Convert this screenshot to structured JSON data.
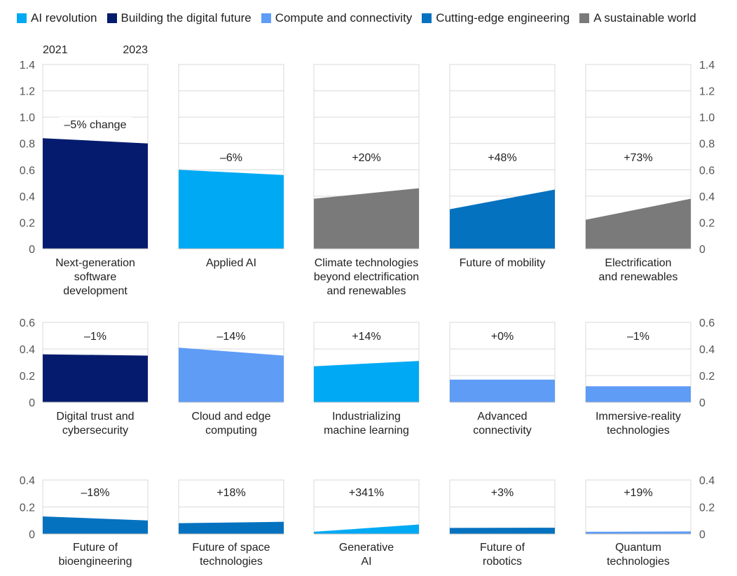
{
  "legend": [
    {
      "label": "AI revolution",
      "color": "#00a9f4"
    },
    {
      "label": "Building the digital future",
      "color": "#051c6e"
    },
    {
      "label": "Compute and connectivity",
      "color": "#5e9cf6"
    },
    {
      "label": "Cutting-edge engineering",
      "color": "#0572c0"
    },
    {
      "label": "A sustainable world",
      "color": "#7a7a7a"
    }
  ],
  "chart_data": {
    "type": "area",
    "years": [
      "2021",
      "2023"
    ],
    "rows": [
      {
        "ylim": [
          0,
          1.4
        ],
        "yticks": [
          "0",
          "0.2",
          "0.4",
          "0.6",
          "0.8",
          "1.0",
          "1.2",
          "1.4"
        ],
        "panels": [
          {
            "label": [
              "Next-generation",
              "software",
              "development"
            ],
            "change": "–5% change",
            "values": [
              0.84,
              0.8
            ],
            "group": "Building the digital future",
            "color": "#051c6e"
          },
          {
            "label": [
              "Applied AI"
            ],
            "change": "–6%",
            "values": [
              0.6,
              0.56
            ],
            "group": "AI revolution",
            "color": "#00a9f4"
          },
          {
            "label": [
              "Climate technologies",
              "beyond electrification",
              "and renewables"
            ],
            "change": "+20%",
            "values": [
              0.38,
              0.46
            ],
            "group": "A sustainable world",
            "color": "#7a7a7a"
          },
          {
            "label": [
              "Future of mobility"
            ],
            "change": "+48%",
            "values": [
              0.3,
              0.45
            ],
            "group": "Cutting-edge engineering",
            "color": "#0572c0"
          },
          {
            "label": [
              "Electrification",
              "and renewables"
            ],
            "change": "+73%",
            "values": [
              0.22,
              0.38
            ],
            "group": "A sustainable world",
            "color": "#7a7a7a"
          }
        ]
      },
      {
        "ylim": [
          0,
          0.6
        ],
        "yticks": [
          "0",
          "0.2",
          "0.4",
          "0.6"
        ],
        "panels": [
          {
            "label": [
              "Digital trust and",
              "cybersecurity"
            ],
            "change": "–1%",
            "values": [
              0.36,
              0.35
            ],
            "group": "Building the digital future",
            "color": "#051c6e"
          },
          {
            "label": [
              "Cloud and edge",
              "computing"
            ],
            "change": "–14%",
            "values": [
              0.41,
              0.35
            ],
            "group": "Compute and connectivity",
            "color": "#5e9cf6"
          },
          {
            "label": [
              "Industrializing",
              "machine learning"
            ],
            "change": "+14%",
            "values": [
              0.27,
              0.31
            ],
            "group": "AI revolution",
            "color": "#00a9f4"
          },
          {
            "label": [
              "Advanced",
              "connectivity"
            ],
            "change": "+0%",
            "values": [
              0.17,
              0.17
            ],
            "group": "Compute and connectivity",
            "color": "#5e9cf6"
          },
          {
            "label": [
              "Immersive-reality",
              "technologies"
            ],
            "change": "–1%",
            "values": [
              0.12,
              0.12
            ],
            "group": "Compute and connectivity",
            "color": "#5e9cf6"
          }
        ]
      },
      {
        "ylim": [
          0,
          0.4
        ],
        "yticks": [
          "0",
          "0.2",
          "0.4"
        ],
        "panels": [
          {
            "label": [
              "Future of",
              "bioengineering"
            ],
            "change": "–18%",
            "values": [
              0.13,
              0.1
            ],
            "group": "Cutting-edge engineering",
            "color": "#0572c0"
          },
          {
            "label": [
              "Future of space",
              "technologies"
            ],
            "change": "+18%",
            "values": [
              0.08,
              0.09
            ],
            "group": "Cutting-edge engineering",
            "color": "#0572c0"
          },
          {
            "label": [
              "Generative",
              "AI"
            ],
            "change": "+341%",
            "values": [
              0.016,
              0.07
            ],
            "group": "AI revolution",
            "color": "#00a9f4"
          },
          {
            "label": [
              "Future of",
              "robotics"
            ],
            "change": "+3%",
            "values": [
              0.045,
              0.046
            ],
            "group": "Cutting-edge engineering",
            "color": "#0572c0"
          },
          {
            "label": [
              "Quantum",
              "technologies"
            ],
            "change": "+19%",
            "values": [
              0.016,
              0.019
            ],
            "group": "Compute and connectivity",
            "color": "#5e9cf6"
          }
        ]
      }
    ]
  }
}
